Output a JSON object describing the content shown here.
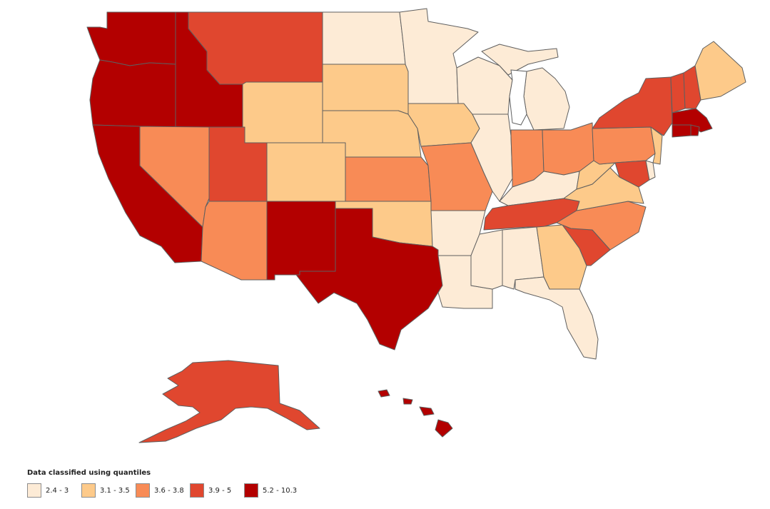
{
  "legend": {
    "title": "Data classified using quantiles",
    "classes": [
      {
        "label": "2.4 - 3",
        "color": "#fdebd6"
      },
      {
        "label": "3.1 - 3.5",
        "color": "#fdca8a"
      },
      {
        "label": "3.6 - 3.8",
        "color": "#f88b56"
      },
      {
        "label": "3.9 - 5",
        "color": "#e0472f"
      },
      {
        "label": "5.2 - 10.3",
        "color": "#b30000"
      }
    ]
  },
  "state_classes": {
    "WA": 4,
    "OR": 4,
    "CA": 4,
    "ID": 4,
    "NM": 4,
    "TX": 4,
    "HI": 4,
    "MA": 4,
    "CT": 4,
    "RI": 4,
    "MT": 3,
    "UT": 3,
    "TN": 3,
    "SC": 3,
    "NY": 3,
    "VT": 3,
    "NH": 3,
    "AK": 3,
    "MD": 3,
    "NV": 2,
    "AZ": 2,
    "KS": 2,
    "MO": 2,
    "IN": 2,
    "OH": 2,
    "PA": 2,
    "NC": 2,
    "WY": 1,
    "CO": 1,
    "SD": 1,
    "NE": 1,
    "IA": 1,
    "OK": 1,
    "GA": 1,
    "WV": 1,
    "VA": 1,
    "ME": 1,
    "NJ": 1,
    "ND": 0,
    "MN": 0,
    "WI": 0,
    "MI": 0,
    "IL": 0,
    "KY": 0,
    "AR": 0,
    "LA": 0,
    "MS": 0,
    "AL": 0,
    "FL": 0,
    "DE": 0
  }
}
